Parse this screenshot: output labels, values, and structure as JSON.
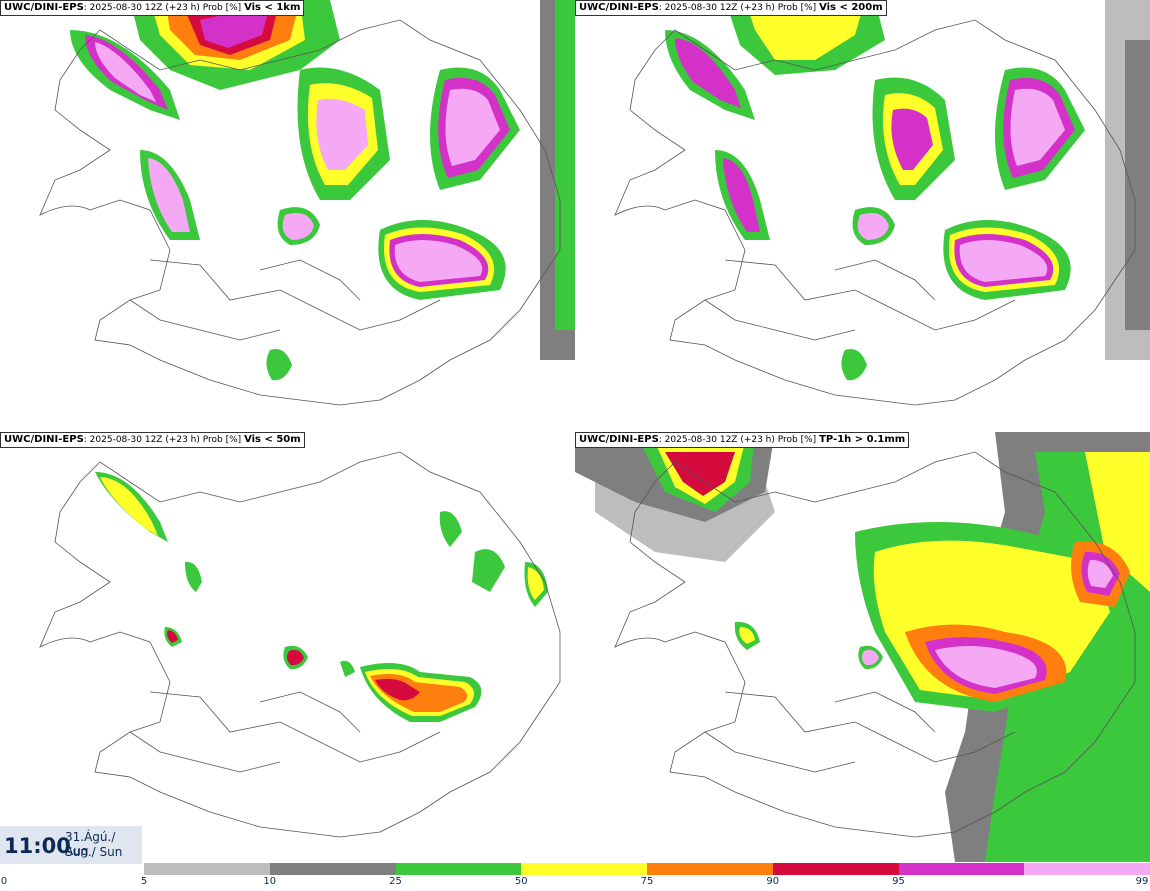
{
  "panels": [
    {
      "source": "UWC/DINI-EPS",
      "run_info": "2025-08-30 12Z (+23 h) Prob [%]",
      "variable": "Vis < 1km"
    },
    {
      "source": "UWC/DINI-EPS",
      "run_info": "2025-08-30 12Z (+23 h) Prob [%]",
      "variable": "Vis < 200m"
    },
    {
      "source": "UWC/DINI-EPS",
      "run_info": "2025-08-30 12Z (+23 h) Prob [%]",
      "variable": "Vis < 50m"
    },
    {
      "source": "UWC/DINI-EPS",
      "run_info": "2025-08-30 12Z (+23 h) Prob [%]",
      "variable": "TP-1h > 0.1mm"
    }
  ],
  "valid_time": {
    "time": "11:00",
    "date_line1": "31.Ágú./ Aug",
    "date_line2": "Sun./ Sun"
  },
  "legend": {
    "ticks": [
      "0",
      "5",
      "10",
      "25",
      "50",
      "75",
      "90",
      "95",
      "99"
    ],
    "colors": [
      "#bdbdbd",
      "#7f7f7f",
      "#3cc83c",
      "#ffff2a",
      "#ff7f0e",
      "#d40b3c",
      "#d431c8",
      "#f5a9f5"
    ]
  }
}
